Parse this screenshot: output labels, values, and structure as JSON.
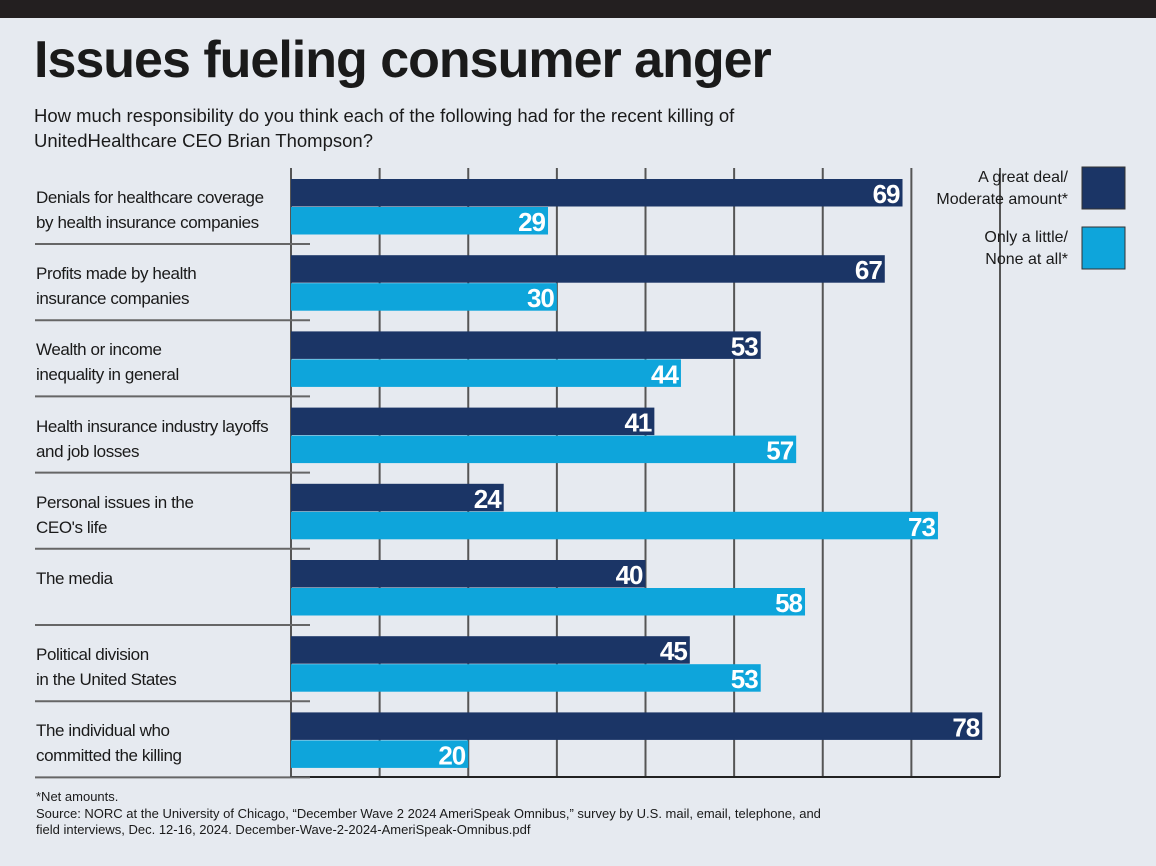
{
  "chart_data": {
    "type": "bar",
    "orientation": "horizontal",
    "title": "Issues fueling consumer anger",
    "subtitle": "How much responsibility do you think each of the following had for the recent killing of\nUnitedHealthcare CEO Brian Thompson?",
    "categories": [
      "Denials for healthcare coverage\nby health insurance companies",
      "Profits made by health\ninsurance companies",
      "Wealth or income\ninequality in general",
      "Health insurance industry layoffs\nand job losses",
      "Personal issues in the\nCEO's life",
      "The media",
      "Political division\nin the United States",
      "The individual who\ncommitted the killing"
    ],
    "series": [
      {
        "name": "A great deal/\nModerate amount*",
        "color": "#1b3566",
        "values": [
          69,
          67,
          53,
          41,
          24,
          40,
          45,
          78
        ]
      },
      {
        "name": "Only a little/\nNone at all*",
        "color": "#0ea5db",
        "values": [
          29,
          30,
          44,
          57,
          73,
          58,
          53,
          20
        ]
      }
    ],
    "xlim": [
      0,
      80
    ],
    "xticks": [
      0,
      10,
      20,
      30,
      40,
      50,
      60,
      70,
      80
    ],
    "grid": true,
    "legend": "top-right",
    "note": "*Net amounts.",
    "source": "Source: NORC at the University of Chicago, “December Wave 2 2024 AmeriSpeak Omnibus,” survey by U.S. mail, email, telephone, and field interviews, Dec. 12-16, 2024. December-Wave-2-2024-AmeriSpeak-Omnibus.pdf"
  }
}
